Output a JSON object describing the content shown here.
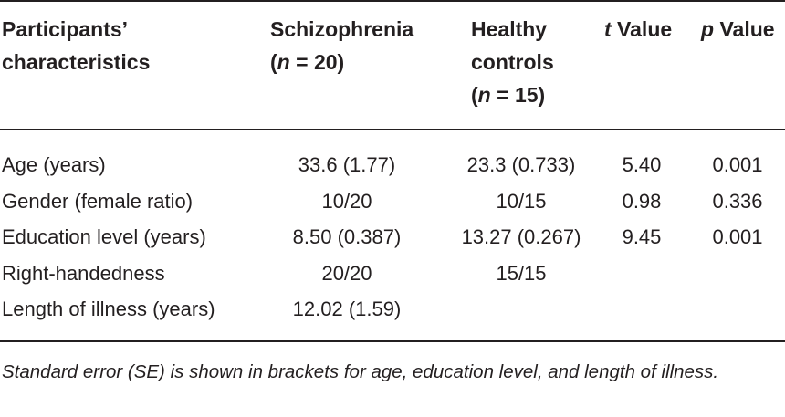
{
  "header": {
    "characteristics_line1": "Participants’",
    "characteristics_line2": "characteristics",
    "schizophrenia_line1": "Schizophrenia",
    "schizophrenia_n": "(n = 20)",
    "healthy_line1": "Healthy",
    "healthy_line2": "controls",
    "healthy_n": "(n = 15)",
    "t_value": "t Value",
    "p_value": "p Value"
  },
  "rows": [
    {
      "label": "Age (years)",
      "schizophrenia": "33.6 (1.77)",
      "healthy": "23.3 (0.733)",
      "t": "5.40",
      "p": "0.001"
    },
    {
      "label": "Gender (female ratio)",
      "schizophrenia": "10/20",
      "healthy": "10/15",
      "t": "0.98",
      "p": "0.336"
    },
    {
      "label": "Education level (years)",
      "schizophrenia": "8.50 (0.387)",
      "healthy": "13.27 (0.267)",
      "t": "9.45",
      "p": "0.001"
    },
    {
      "label": "Right-handedness",
      "schizophrenia": "20/20",
      "healthy": "15/15",
      "t": "",
      "p": ""
    },
    {
      "label": "Length of illness (years)",
      "schizophrenia": "12.02 (1.59)",
      "healthy": "",
      "t": "",
      "p": ""
    }
  ],
  "footnote": "Standard error (SE) is shown in brackets for age, education level, and length of illness."
}
